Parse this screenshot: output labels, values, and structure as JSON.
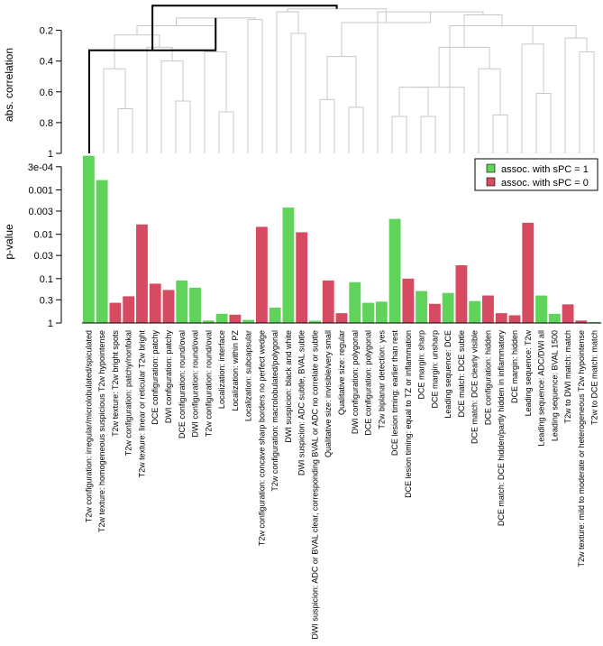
{
  "chart_data": [
    {
      "type": "dendrogram",
      "ylabel": "abs. correlation",
      "y_ticks": [
        "0.2",
        "0.4",
        "0.6",
        "0.8",
        "1"
      ],
      "y_tick_values": [
        0.2,
        0.4,
        0.6,
        0.8,
        1.0
      ],
      "ylim": [
        0.05,
        1.0
      ],
      "leaf_count": 36,
      "merges": [
        {
          "a": "L3",
          "b": "L4",
          "h": 0.71
        },
        {
          "a": "L7",
          "b": "L8",
          "h": 0.66
        },
        {
          "a": "L6",
          "b": "M2",
          "h": 0.4
        },
        {
          "a": "L10",
          "b": "L11",
          "h": 0.73
        },
        {
          "a": "L12",
          "b": "L13",
          "h": 0.13
        },
        {
          "a": "L17",
          "b": "L18",
          "h": 0.65
        },
        {
          "a": "L19",
          "b": "L20",
          "h": 0.7
        },
        {
          "a": "M6",
          "b": "M7",
          "h": 0.37
        },
        {
          "a": "L22",
          "b": "L23",
          "h": 0.76
        },
        {
          "a": "L24",
          "b": "L25",
          "h": 0.76
        },
        {
          "a": "M9",
          "b": "M10",
          "h": 0.57
        },
        {
          "a": "L27",
          "b": "M11",
          "h": 0.57
        },
        {
          "a": "L29",
          "b": "L30",
          "h": 0.75
        },
        {
          "a": "L28",
          "b": "M13",
          "h": 0.45
        },
        {
          "a": "M12",
          "b": "M14",
          "h": 0.31
        },
        {
          "a": "L2",
          "b": "M1",
          "h": 0.45
        },
        {
          "a": "L5",
          "b": "M3",
          "h": 0.31
        },
        {
          "a": "L9",
          "b": "M4",
          "h": 0.34
        },
        {
          "a": "M16",
          "b": "M17",
          "h": 0.23
        },
        {
          "a": "M19",
          "b": "M18",
          "h": 0.17
        },
        {
          "a": "M20",
          "b": "M5",
          "h": 0.12
        },
        {
          "a": "L15",
          "b": "L16",
          "h": 0.22
        },
        {
          "a": "L32",
          "b": "L33",
          "h": 0.61
        },
        {
          "a": "L31",
          "b": "M23",
          "h": 0.29
        },
        {
          "a": "L35",
          "b": "L36",
          "h": 0.34
        },
        {
          "a": "L34",
          "b": "M25",
          "h": 0.25
        },
        {
          "a": "M24",
          "b": "M26",
          "h": 0.17
        },
        {
          "a": "L26",
          "b": "M27",
          "h": 0.17
        },
        {
          "a": "M15",
          "b": "M28",
          "h": 0.1
        },
        {
          "a": "L21",
          "b": "M29",
          "h": 0.08
        },
        {
          "a": "M8",
          "b": "M30",
          "h": 0.15
        },
        {
          "a": "L14",
          "b": "M22",
          "h": 0.08
        },
        {
          "a": "M31",
          "b": "M32",
          "h": 0.06
        },
        {
          "a": "L1",
          "b": "M21",
          "h": 0.33
        },
        {
          "a": "M34",
          "b": "M33",
          "h": 0.04
        }
      ],
      "highlight_merges": [
        33,
        34
      ]
    },
    {
      "type": "bar",
      "ylabel": "p-value",
      "scale": "log10-reversed",
      "y_ticks": [
        "3e-04",
        "0.001",
        "0.003",
        "0.01",
        "0.03",
        "0.1",
        "0.3",
        "1"
      ],
      "y_tick_values": [
        0.0003,
        0.001,
        0.003,
        0.01,
        0.03,
        0.1,
        0.3,
        1
      ],
      "ylim": [
        1,
        0.00015
      ],
      "legend_position": "top-right",
      "legend": [
        {
          "label": "assoc. with sPC = 1",
          "color": "#5fd35a"
        },
        {
          "label": "assoc. with sPC = 0",
          "color": "#d64a62"
        }
      ],
      "categories": [
        "T2w configuration: irregular/microlobulated/spiculated",
        "T2w texture: homogeneous suspicious T2w hypointense",
        "T2w texture: T2w bright spots",
        "T2w configuration: patchy/nonfokal",
        "T2w texture: linear or reticular T2w bright",
        "DCE configuration: patchy",
        "DWI configuration: patchy",
        "DCE configuration: round/oval",
        "DWI configuration: round/oval",
        "T2w configuration: round/oval",
        "Localization: interface",
        "Localization: within PZ",
        "Localization: subcapsular",
        "T2w configuration: concave sharp borders no perfect wedge",
        "T2w configuration: macrolobulated/polygonal",
        "DWI suspicion: black and white",
        "DWI suspicion: ADC subtle, BVAL subtle",
        "DWI suspicion: ADC or BVAL clear, corresponding BVAL or ADC no correlate or subtle",
        "Qualitative size: invisible/very small",
        "Qualitative size: regular",
        "DWI configuration: polygonal",
        "DCE configuration: polygonal",
        "T2w biplanar detection: yes",
        "DCE lesion timing: earlier than rest",
        "DCE lesion timing: equal to TZ or inflammation",
        "DCE margin: sharp",
        "DCE margin: unsharp",
        "Leading sequence: DCE",
        "DCE match: DCE subtle",
        "DCE match: DCE clearly visible",
        "DCE configuration: hidden",
        "DCE match: DCE hidden/partly hidden in inflammatory",
        "DCE margin: hidden",
        "Leading sequence: T2w",
        "Leading sequence: ADC/DWI all",
        "Leading sequence: BVAL 1500",
        "T2w to DWI match: match",
        "T2w texture: mild to moderate or heterogeneous T2w hypointense",
        "T2w to DCE match: match"
      ],
      "values": [
        0.00017,
        0.0006,
        0.35,
        0.25,
        0.006,
        0.13,
        0.18,
        0.11,
        0.16,
        0.88,
        0.62,
        0.65,
        0.85,
        0.0068,
        0.45,
        0.0025,
        0.009,
        0.89,
        0.11,
        0.6,
        0.12,
        0.35,
        0.33,
        0.0045,
        0.1,
        0.19,
        0.37,
        0.21,
        0.05,
        0.32,
        0.24,
        0.6,
        0.67,
        0.0055,
        0.24,
        0.62,
        0.38,
        0.88,
        0.95
      ],
      "groups": [
        1,
        1,
        0,
        0,
        0,
        0,
        0,
        1,
        1,
        1,
        1,
        0,
        1,
        0,
        1,
        1,
        0,
        1,
        0,
        0,
        1,
        1,
        1,
        1,
        0,
        1,
        0,
        1,
        0,
        1,
        0,
        0,
        0,
        0,
        1,
        1,
        0,
        0,
        1
      ]
    }
  ]
}
